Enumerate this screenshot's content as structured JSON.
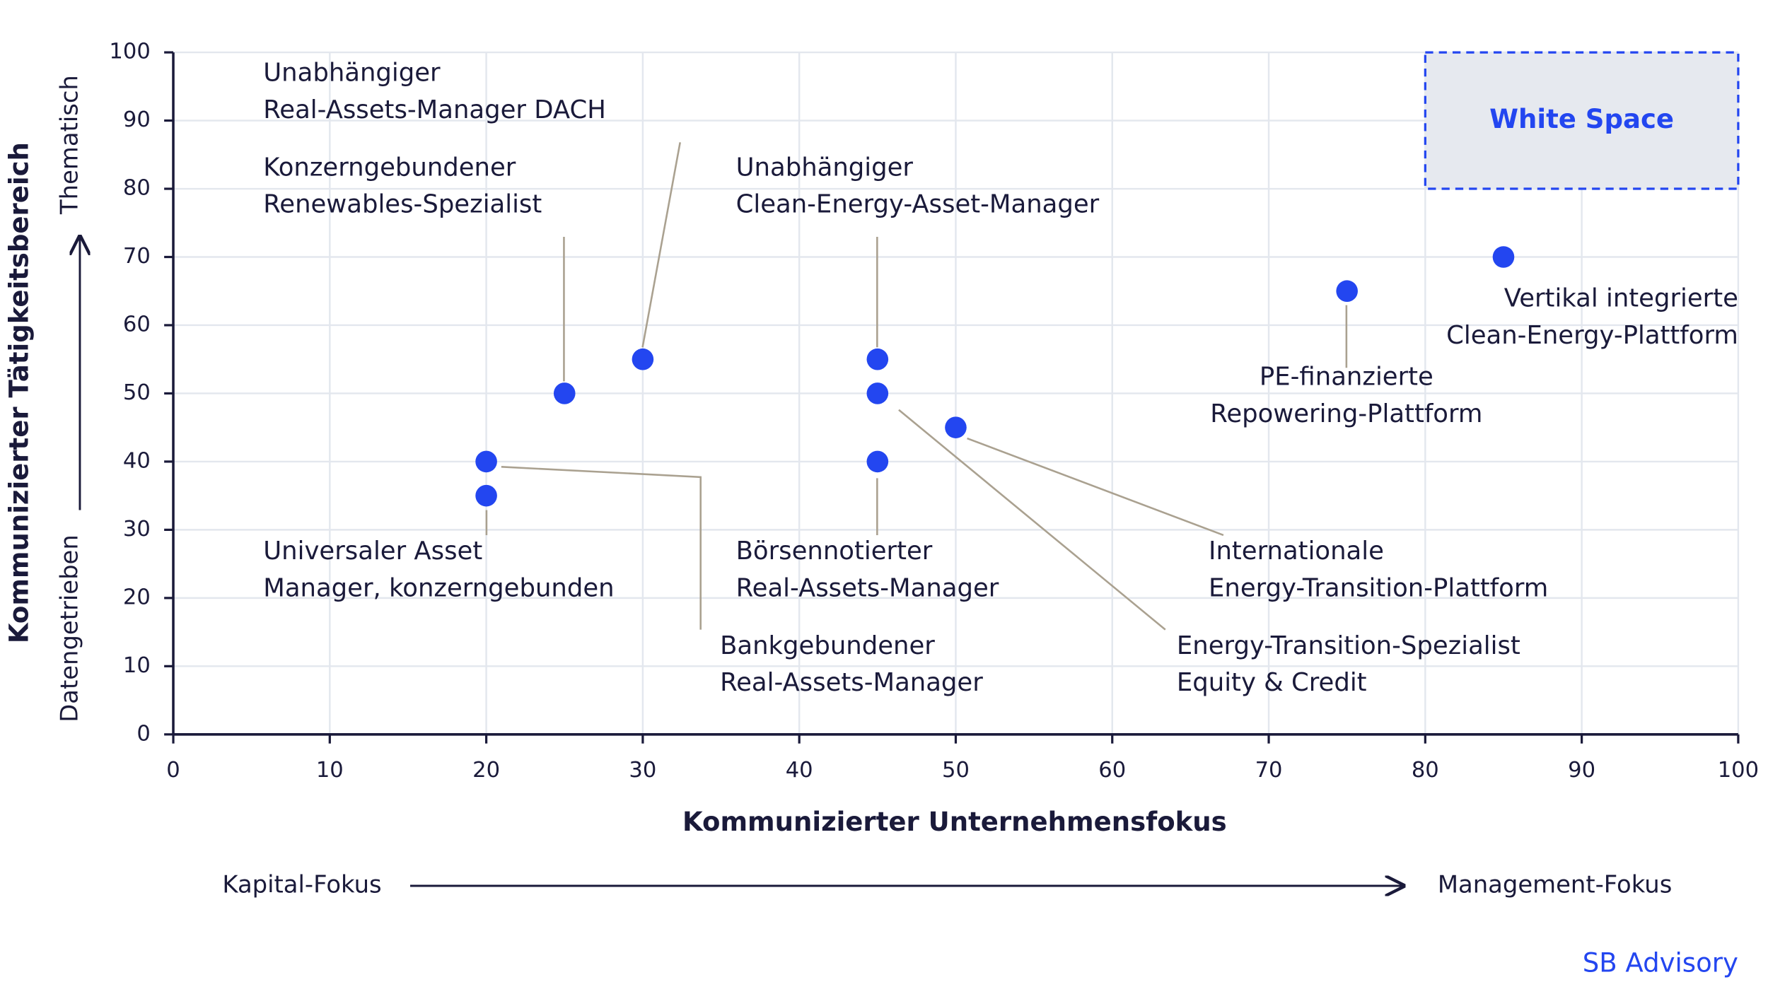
{
  "chart_data": {
    "type": "scatter",
    "x_label": "Kommunizierter Unternehmensfokus",
    "x_low": "Kapital-Fokus",
    "x_high": "Management-Fokus",
    "y_label": "Kommunizierter Tätigkeitsbereich",
    "y_low": "Datengetrieben",
    "y_high": "Thematisch",
    "xlim": [
      0,
      100
    ],
    "xticks": [
      0,
      10,
      20,
      30,
      40,
      50,
      60,
      70,
      80,
      90,
      100
    ],
    "ylim": [
      0,
      100
    ],
    "yticks": [
      0,
      10,
      20,
      30,
      40,
      50,
      60,
      70,
      80,
      90,
      100
    ],
    "grid": true,
    "color": "#2346f0",
    "x": [
      30,
      25,
      45,
      20,
      20,
      45,
      45,
      50,
      75,
      85
    ],
    "values": [
      55,
      50,
      55,
      35,
      40,
      40,
      50,
      45,
      65,
      70
    ],
    "labels": [
      [
        "Unabhängiger",
        "Real-Assets-Manager DACH"
      ],
      [
        "Konzerngebundener",
        "Renewables-Spezialist"
      ],
      [
        "Unabhängiger",
        "Clean-Energy-Asset-Manager"
      ],
      [
        "Universaler Asset",
        "Manager, konzerngebunden"
      ],
      [
        "Bankgebundener",
        "Real-Assets-Manager"
      ],
      [
        "Börsennotierter",
        "Real-Assets-Manager"
      ],
      [
        "Energy-Transition-Spezialist",
        "Equity & Credit"
      ],
      [
        "Internationale",
        "Energy-Transition-Plattform"
      ],
      [
        "PE-finanzierte",
        "Repowering-Plattform"
      ],
      [
        "Vertikal integrierte",
        "Clean-Energy-Plattform"
      ]
    ],
    "region": {
      "label": "White Space",
      "x": [
        80,
        100
      ],
      "y": [
        80,
        100
      ]
    },
    "source": "SB Advisory"
  }
}
